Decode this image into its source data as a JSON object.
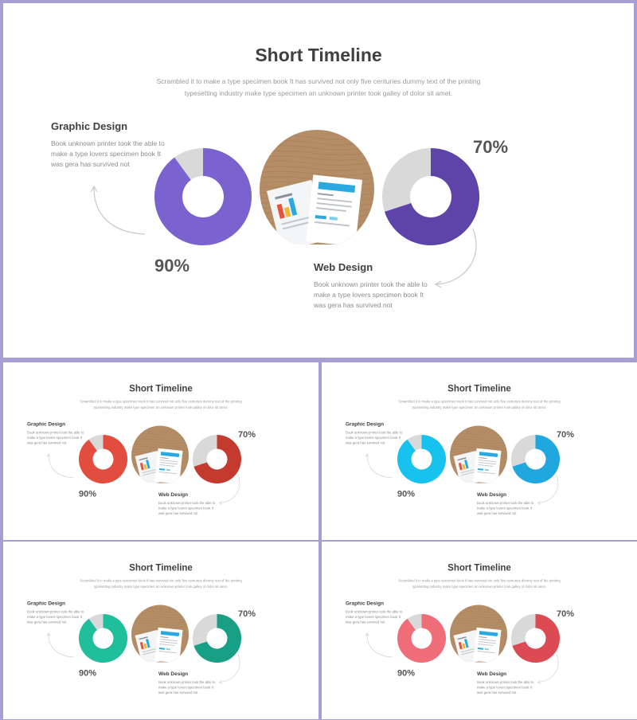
{
  "slide": {
    "title": "Short Timeline",
    "subtitle": "Scrambled it to make a type specimen book It has survived  not only five  centuries dummy text of the printing typesetting industry make type specimen an unknown printer took galley of dolor sit amet.",
    "left": {
      "heading": "Graphic Design",
      "text": "Book unknown printer took the able to make a type lovers  specimen book It was gera has survived  not",
      "percent_label": "90%"
    },
    "right": {
      "heading": "Web Design",
      "text": "Book unknown printer took the able to make a type lovers  specimen book It was gera has survived  not",
      "percent_label": "70%"
    }
  },
  "colors": {
    "border": "#a79fd3",
    "remainder": "#d9d9d9",
    "variants": [
      {
        "left": "#7b63cf",
        "right": "#5e43a8"
      },
      {
        "left": "#e34d3f",
        "right": "#c43a2e"
      },
      {
        "left": "#18c2ef",
        "right": "#21a7df"
      },
      {
        "left": "#1fbf9c",
        "right": "#17a085"
      },
      {
        "left": "#ef6d78",
        "right": "#dc4a53"
      }
    ]
  },
  "chart_data": [
    {
      "type": "pie",
      "categories": [
        "Graphic Design"
      ],
      "values": [
        90
      ],
      "variant": 0
    },
    {
      "type": "pie",
      "categories": [
        "Web Design"
      ],
      "values": [
        70
      ],
      "variant": 0
    },
    {
      "type": "pie",
      "categories": [
        "Graphic Design"
      ],
      "values": [
        90
      ],
      "variant": 1
    },
    {
      "type": "pie",
      "categories": [
        "Web Design"
      ],
      "values": [
        70
      ],
      "variant": 1
    },
    {
      "type": "pie",
      "categories": [
        "Graphic Design"
      ],
      "values": [
        90
      ],
      "variant": 2
    },
    {
      "type": "pie",
      "categories": [
        "Web Design"
      ],
      "values": [
        70
      ],
      "variant": 2
    },
    {
      "type": "pie",
      "categories": [
        "Graphic Design"
      ],
      "values": [
        90
      ],
      "variant": 3
    },
    {
      "type": "pie",
      "categories": [
        "Web Design"
      ],
      "values": [
        70
      ],
      "variant": 3
    },
    {
      "type": "pie",
      "categories": [
        "Graphic Design"
      ],
      "values": [
        90
      ],
      "variant": 4
    },
    {
      "type": "pie",
      "categories": [
        "Web Design"
      ],
      "values": [
        70
      ],
      "variant": 4
    }
  ]
}
